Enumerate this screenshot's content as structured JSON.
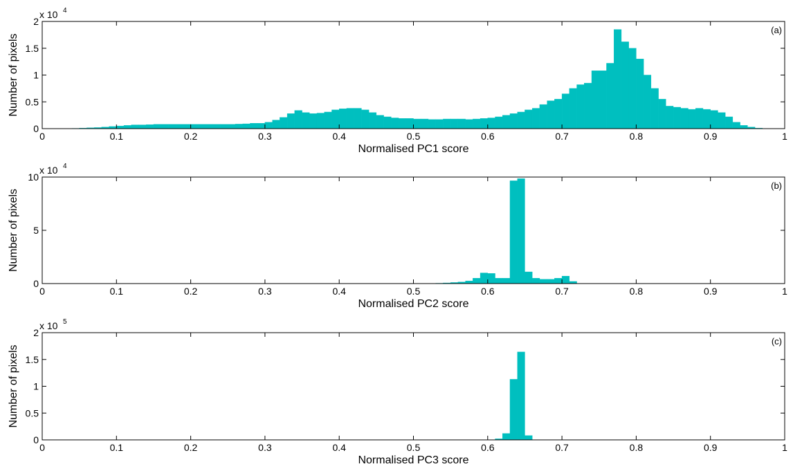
{
  "colors": {
    "bar": "#00BFBF",
    "axis": "#000000",
    "background": "#FFFFFF"
  },
  "chart_data": [
    {
      "type": "bar",
      "panel_label": "(a)",
      "xlabel": "Normalised PC1 score",
      "ylabel": "Number of pixels",
      "xlim": [
        0,
        1
      ],
      "ylim": [
        0,
        20000
      ],
      "x_ticks": [
        "0",
        "0.1",
        "0.2",
        "0.3",
        "0.4",
        "0.5",
        "0.6",
        "0.7",
        "0.8",
        "0.9",
        "1"
      ],
      "y_ticks": [
        "0",
        "0.5",
        "1",
        "1.5",
        "2"
      ],
      "y_tick_values": [
        0,
        5000,
        10000,
        15000,
        20000
      ],
      "y_multiplier_base": "x 10",
      "y_multiplier_exp": "4",
      "bin_width": 0.01,
      "bin_starts": [
        0.04,
        0.05,
        0.06,
        0.07,
        0.08,
        0.09,
        0.1,
        0.11,
        0.12,
        0.13,
        0.14,
        0.15,
        0.16,
        0.17,
        0.18,
        0.19,
        0.2,
        0.21,
        0.22,
        0.23,
        0.24,
        0.25,
        0.26,
        0.27,
        0.28,
        0.29,
        0.3,
        0.31,
        0.32,
        0.33,
        0.34,
        0.35,
        0.36,
        0.37,
        0.38,
        0.39,
        0.4,
        0.41,
        0.42,
        0.43,
        0.44,
        0.45,
        0.46,
        0.47,
        0.48,
        0.49,
        0.5,
        0.51,
        0.52,
        0.53,
        0.54,
        0.55,
        0.56,
        0.57,
        0.58,
        0.59,
        0.6,
        0.61,
        0.62,
        0.63,
        0.64,
        0.65,
        0.66,
        0.67,
        0.68,
        0.69,
        0.7,
        0.71,
        0.72,
        0.73,
        0.74,
        0.75,
        0.76,
        0.77,
        0.78,
        0.79,
        0.8,
        0.81,
        0.82,
        0.83,
        0.84,
        0.85,
        0.86,
        0.87,
        0.88,
        0.89,
        0.9,
        0.91,
        0.92,
        0.93,
        0.94,
        0.95,
        0.96
      ],
      "values": [
        50,
        100,
        150,
        200,
        300,
        400,
        500,
        600,
        700,
        700,
        750,
        800,
        800,
        800,
        800,
        800,
        800,
        800,
        800,
        800,
        800,
        800,
        850,
        900,
        1000,
        1000,
        1200,
        1600,
        2100,
        2800,
        3400,
        3000,
        2800,
        2900,
        3100,
        3500,
        3700,
        3800,
        3800,
        3500,
        3000,
        2500,
        2200,
        2000,
        1900,
        1900,
        1800,
        1800,
        1700,
        1700,
        1800,
        1800,
        1800,
        1700,
        1800,
        1900,
        2000,
        2200,
        2500,
        2800,
        3100,
        3500,
        3800,
        4500,
        5200,
        5500,
        6500,
        7500,
        8200,
        8500,
        10800,
        10800,
        12200,
        18500,
        16200,
        15000,
        13000,
        10000,
        7500,
        5500,
        4200,
        4000,
        3800,
        3600,
        3800,
        3600,
        3400,
        3000,
        2200,
        1200,
        600,
        300,
        100
      ]
    },
    {
      "type": "bar",
      "panel_label": "(b)",
      "xlabel": "Normalised PC2 score",
      "ylabel": "Number of pixels",
      "xlim": [
        0,
        1
      ],
      "ylim": [
        0,
        100000
      ],
      "x_ticks": [
        "0",
        "0.1",
        "0.2",
        "0.3",
        "0.4",
        "0.5",
        "0.6",
        "0.7",
        "0.8",
        "0.9",
        "1"
      ],
      "y_ticks": [
        "0",
        "5",
        "10"
      ],
      "y_tick_values": [
        0,
        50000,
        100000
      ],
      "y_multiplier_base": "x 10",
      "y_multiplier_exp": "4",
      "bin_width": 0.01,
      "bin_starts": [
        0.53,
        0.54,
        0.55,
        0.56,
        0.57,
        0.58,
        0.59,
        0.6,
        0.61,
        0.62,
        0.63,
        0.64,
        0.65,
        0.66,
        0.67,
        0.68,
        0.69,
        0.7,
        0.71
      ],
      "values": [
        300,
        600,
        1000,
        1500,
        2500,
        5000,
        10000,
        9500,
        5000,
        5000,
        96500,
        98500,
        11000,
        5000,
        4000,
        4000,
        5000,
        7000,
        2000
      ]
    },
    {
      "type": "bar",
      "panel_label": "(c)",
      "xlabel": "Normalised PC3 score",
      "ylabel": "Number of pixels",
      "xlim": [
        0,
        1
      ],
      "ylim": [
        0,
        200000
      ],
      "x_ticks": [
        "0",
        "0.1",
        "0.2",
        "0.3",
        "0.4",
        "0.5",
        "0.6",
        "0.7",
        "0.8",
        "0.9",
        "1"
      ],
      "y_ticks": [
        "0",
        "0.5",
        "1",
        "1.5",
        "2"
      ],
      "y_tick_values": [
        0,
        50000,
        100000,
        150000,
        200000
      ],
      "y_multiplier_base": "x 10",
      "y_multiplier_exp": "5",
      "bin_width": 0.01,
      "bin_starts": [
        0.61,
        0.62,
        0.63,
        0.64,
        0.65
      ],
      "values": [
        2000,
        12000,
        113000,
        164000,
        8000
      ]
    }
  ]
}
